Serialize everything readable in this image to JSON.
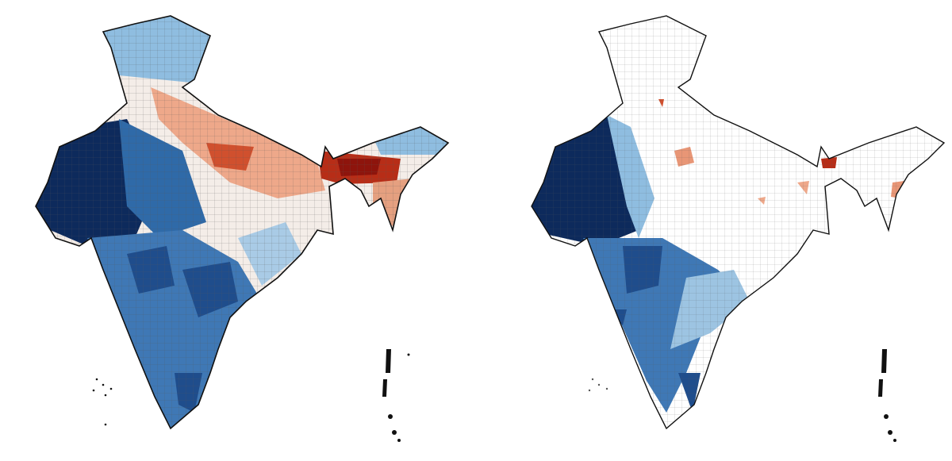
{
  "palette": {
    "dark_blue": "#0d2a5c",
    "mid_blue": "#2f6aa8",
    "light_blue": "#8fbde0",
    "pale": "#f4ede8",
    "light_red": "#eea88a",
    "red": "#d0502e",
    "dark_red": "#9e1a10",
    "outline": "#111111"
  },
  "maps": [
    {
      "id": "left-map"
    },
    {
      "id": "right-map"
    }
  ]
}
